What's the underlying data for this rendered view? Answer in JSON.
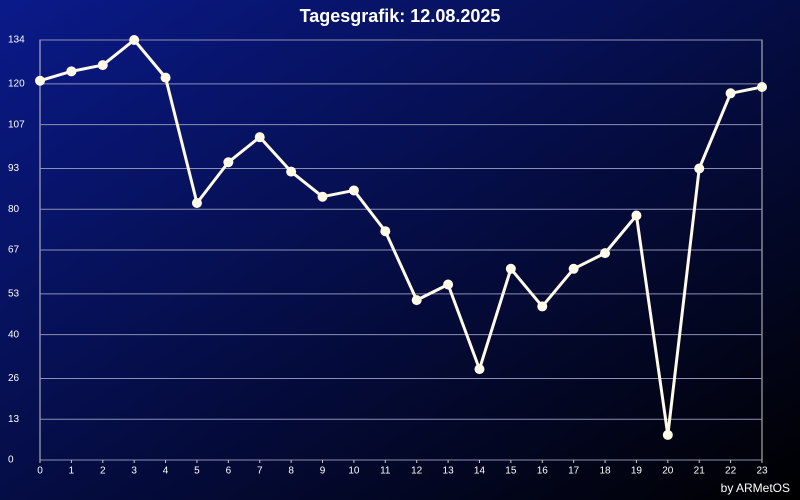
{
  "chart_data": {
    "type": "line",
    "title": "Tagesgrafik: 12.08.2025",
    "credit": "by ARMetOS",
    "x": [
      0,
      1,
      2,
      3,
      4,
      5,
      6,
      7,
      8,
      9,
      10,
      11,
      12,
      13,
      14,
      15,
      16,
      17,
      18,
      19,
      20,
      21,
      22,
      23
    ],
    "series": [
      {
        "color": "#fffbe8",
        "values": [
          121,
          124,
          126,
          134,
          122,
          82,
          95,
          103,
          92,
          84,
          86,
          73,
          51,
          56,
          29,
          61,
          49,
          61,
          66,
          78,
          8,
          93,
          117,
          119
        ]
      }
    ],
    "xlim": [
      0,
      23
    ],
    "xticks": [
      0,
      1,
      2,
      3,
      4,
      5,
      6,
      7,
      8,
      9,
      10,
      11,
      12,
      13,
      14,
      15,
      16,
      17,
      18,
      19,
      20,
      21,
      22,
      23
    ],
    "ylim": [
      0,
      134
    ],
    "yticks": [
      0,
      13,
      26,
      40,
      53,
      67,
      80,
      93,
      107,
      120,
      134
    ],
    "grid": true
  }
}
